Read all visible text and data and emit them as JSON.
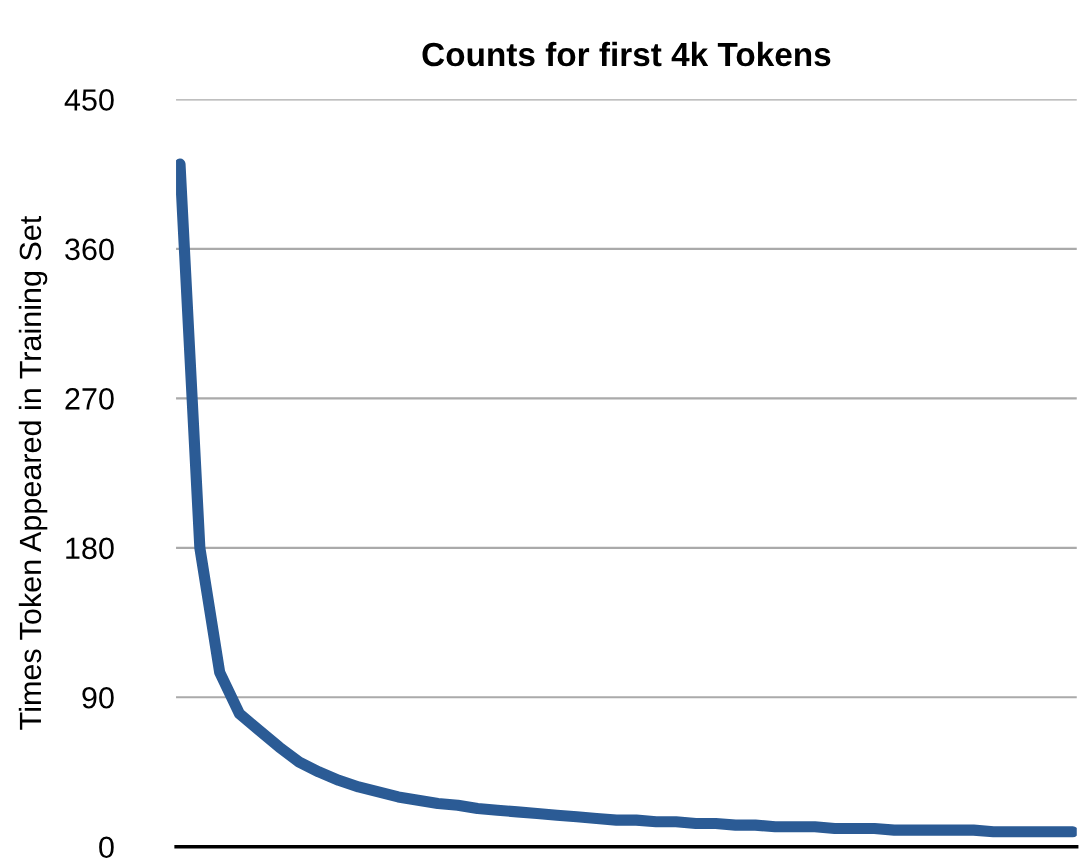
{
  "chart_data": {
    "type": "line",
    "title": "Counts for first 4k Tokens",
    "ylabel": "Times Token Appeared in Training Set",
    "categories": [
      null,
      null,
      null,
      null,
      null,
      null,
      null,
      null,
      null,
      null,
      null,
      null,
      null,
      null,
      null,
      null,
      null,
      null,
      null,
      null,
      null,
      null,
      null,
      null,
      null,
      null,
      null,
      null,
      null,
      null,
      null,
      null,
      null,
      null,
      null,
      null,
      null,
      null,
      null,
      null,
      null,
      null,
      null,
      null,
      null,
      null
    ],
    "series": [
      {
        "color": "#2b5b95",
        "values": [
          411,
          180,
          105,
          80,
          70,
          60,
          51,
          45,
          40,
          36,
          33,
          30,
          28,
          26,
          25,
          23,
          22,
          21,
          20,
          19,
          18,
          17,
          16,
          16,
          15,
          15,
          14,
          14,
          13,
          13,
          12,
          12,
          12,
          11,
          11,
          11,
          10,
          10,
          10,
          10,
          10,
          9,
          9,
          9,
          9,
          9
        ]
      }
    ],
    "ylim": [
      0,
      450
    ],
    "yticks": [
      0,
      90,
      180,
      270,
      360,
      450
    ],
    "grid": "y",
    "tick_labels": "y",
    "marker": "none",
    "line_style": "solid",
    "legend": false
  }
}
